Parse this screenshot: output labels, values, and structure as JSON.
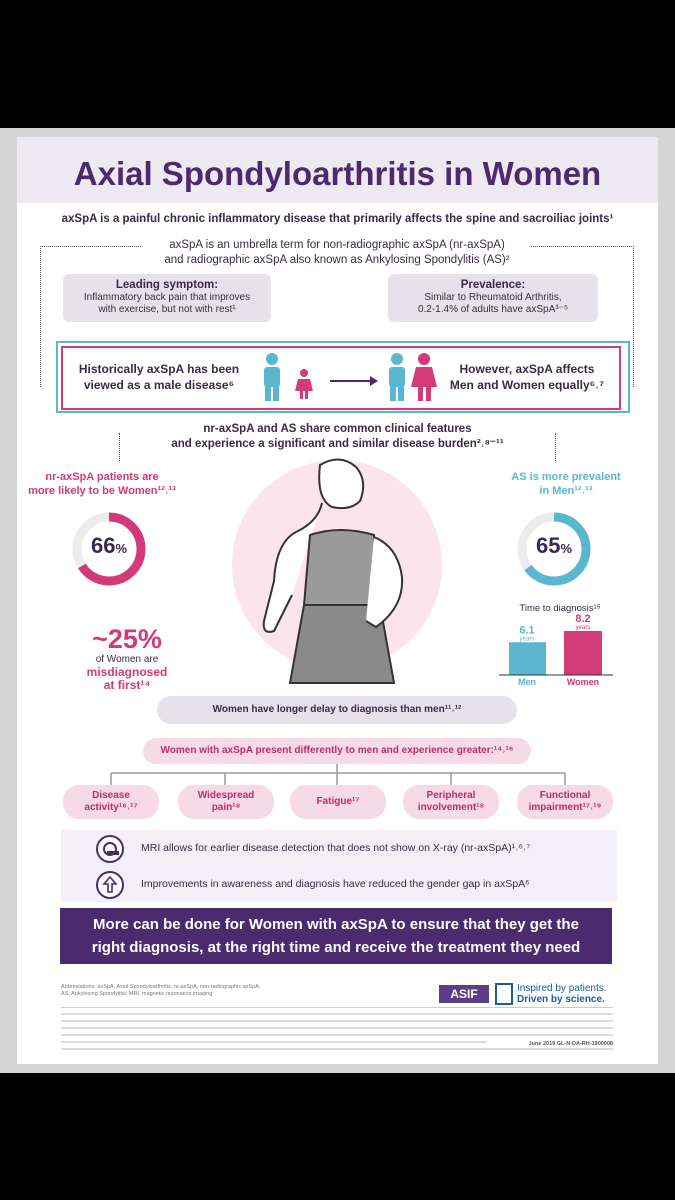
{
  "title": "Axial Spondyloarthritis in Women",
  "subtitle": "axSpA is a painful chronic inflammatory disease that primarily affects the spine and sacroiliac joints¹",
  "umbrella": {
    "line1": "axSpA is an umbrella term for non-radiographic axSpA (nr-axSpA)",
    "line2": "and radiographic axSpA also known as Ankylosing Spondylitis (AS)²"
  },
  "leading": {
    "label": "Leading symptom:",
    "line1": "Inflammatory back pain that improves",
    "line2": "with exercise, but not with rest¹"
  },
  "prevalence": {
    "label": "Prevalence:",
    "line1": "Similar to Rheumatoid Arthritis,",
    "line2": "0.2-1.4% of adults have axSpA³⁻⁵"
  },
  "historic": {
    "left_line1": "Historically axSpA has been",
    "left_line2": "viewed as a male disease⁶",
    "right_line1": "However, axSpA affects",
    "right_line2": "Men and Women equally⁶˒⁷"
  },
  "features": {
    "line1": "nr-axSpA and AS share common clinical features",
    "line2": "and experience a significant and similar disease burden²˒⁸⁻¹¹"
  },
  "nr": {
    "line1": "nr-axSpA patients are",
    "line2": "more likely to be Women¹²˒¹³",
    "percent": "66",
    "percent_sign": "%",
    "percent_value": 66
  },
  "as": {
    "line1": "AS is more prevalent",
    "line2": "in Men¹²˒¹³",
    "percent": "65",
    "percent_sign": "%",
    "percent_value": 65
  },
  "misdiagnosed": {
    "big": "~25%",
    "line1": "of Women are",
    "line2": "misdiagnosed",
    "line3": "at first¹⁴"
  },
  "diagnosis": {
    "label": "Time to diagnosis¹⁵",
    "men_value": "6.1",
    "men_unit": "years",
    "men_label": "Men",
    "women_value": "8.2",
    "women_unit": "years",
    "women_label": "Women",
    "men_years": 6.1,
    "women_years": 8.2
  },
  "delay_banner": "Women have longer delay to diagnosis than men¹¹˒¹²",
  "present_banner": "Women with axSpA present differently to men and experience greater:¹⁴˒¹⁶",
  "symptoms": [
    {
      "line1": "Disease",
      "line2": "activity¹⁶˒¹⁷"
    },
    {
      "line1": "Widespread",
      "line2": "pain¹⁸"
    },
    {
      "line1": "Fatigue¹⁷",
      "line2": ""
    },
    {
      "line1": "Peripheral",
      "line2": "involvement¹⁸"
    },
    {
      "line1": "Functional",
      "line2": "impairment¹⁷˒¹⁹"
    }
  ],
  "mri_text": "MRI allows for earlier disease detection that does not show on X-ray (nr-axSpA)¹˒⁶˒⁷",
  "awareness_text": "Improvements in awareness and diagnosis have reduced the gender gap in axSpA⁶",
  "cta": {
    "line1": "More can be done for Women with axSpA to ensure that they get the",
    "line2": "right diagnosis, at the right time and receive the treatment they need"
  },
  "abbreviations": {
    "line1": "Abbreviations: axSpA, Axial Spondyloarthritis; nr-axSpA, non-radiographic axSpA;",
    "line2": "AS, Ankylosing Spondylitis; MRI, magnetic resonance imaging"
  },
  "logo_text": "ASIF",
  "tagline": {
    "line1": "Inspired by patients.",
    "line2": "Driven by science."
  },
  "footer_code": "June 2019 GL-N-DA-RH-1900008",
  "colors": {
    "purple": "#4b2a6e",
    "pink": "#d23a78",
    "blue": "#5bb6cf",
    "lavender": "#e7e1ec"
  }
}
